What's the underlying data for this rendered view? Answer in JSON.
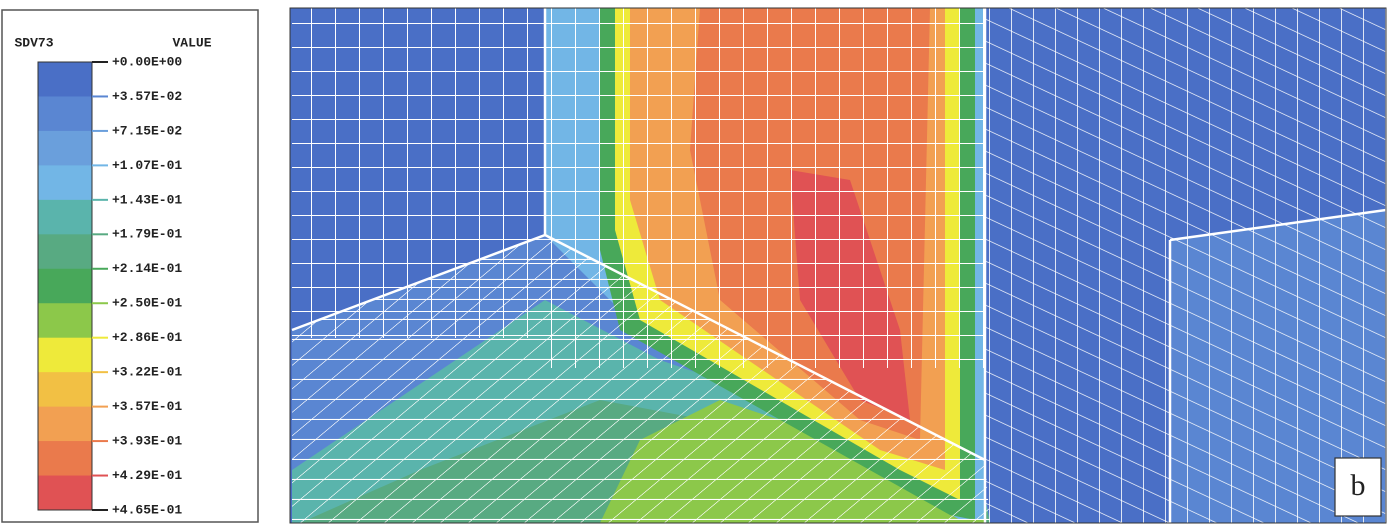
{
  "legend": {
    "title": "SDV73",
    "header": "VALUE",
    "labels": [
      "+0.00E+00",
      "+3.57E-02",
      "+7.15E-02",
      "+1.07E-01",
      "+1.43E-01",
      "+1.79E-01",
      "+2.14E-01",
      "+2.50E-01",
      "+2.86E-01",
      "+3.22E-01",
      "+3.57E-01",
      "+3.93E-01",
      "+4.29E-01",
      "+4.65E-01"
    ],
    "colors": [
      "#4a6fc6",
      "#5a86d2",
      "#6a9fdc",
      "#72b6e6",
      "#5ab4ac",
      "#58aa82",
      "#48a85a",
      "#8cc84a",
      "#eeea3a",
      "#f2c044",
      "#f2a052",
      "#ea7a4c",
      "#e05254"
    ]
  },
  "panel_label": "b"
}
